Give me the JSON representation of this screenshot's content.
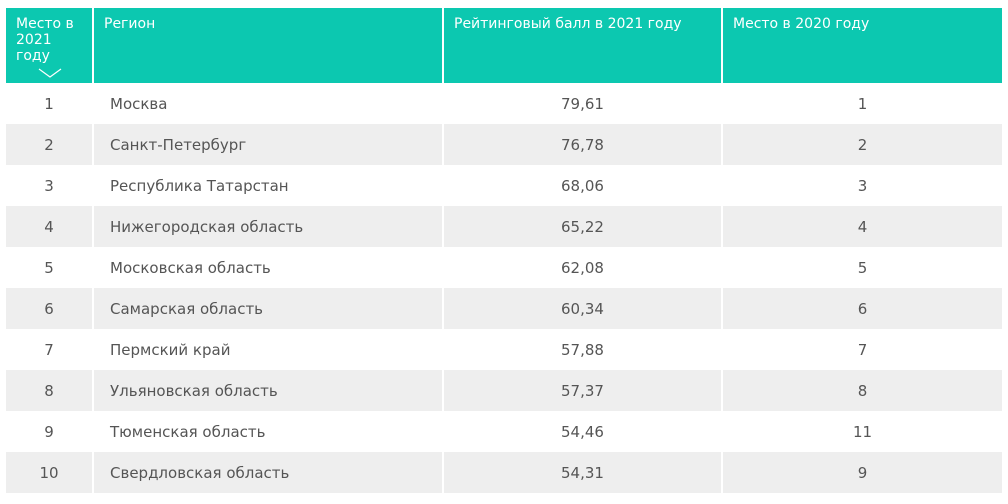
{
  "header": {
    "rank_2021": "Место в 2021 году",
    "region": "Регион",
    "score_2021": "Рейтинговый балл в 2021 году",
    "rank_2020": "Место в 2020 году",
    "sort_icon": "chevron-down-icon"
  },
  "rows": [
    {
      "rank": "1",
      "region": "Москва",
      "score": "79,61",
      "prev": "1"
    },
    {
      "rank": "2",
      "region": "Санкт-Петербург",
      "score": "76,78",
      "prev": "2"
    },
    {
      "rank": "3",
      "region": "Республика Татарстан",
      "score": "68,06",
      "prev": "3"
    },
    {
      "rank": "4",
      "region": "Нижегородская область",
      "score": "65,22",
      "prev": "4"
    },
    {
      "rank": "5",
      "region": "Московская область",
      "score": "62,08",
      "prev": "5"
    },
    {
      "rank": "6",
      "region": "Самарская область",
      "score": "60,34",
      "prev": "6"
    },
    {
      "rank": "7",
      "region": "Пермский край",
      "score": "57,88",
      "prev": "7"
    },
    {
      "rank": "8",
      "region": "Ульяновская область",
      "score": "57,37",
      "prev": "8"
    },
    {
      "rank": "9",
      "region": "Тюменская область",
      "score": "54,46",
      "prev": "11"
    },
    {
      "rank": "10",
      "region": "Свердловская область",
      "score": "54,31",
      "prev": "9"
    }
  ],
  "colors": {
    "header_bg": "#0cc8b0",
    "stripe_bg": "#eeeeee",
    "text": "#555555"
  }
}
